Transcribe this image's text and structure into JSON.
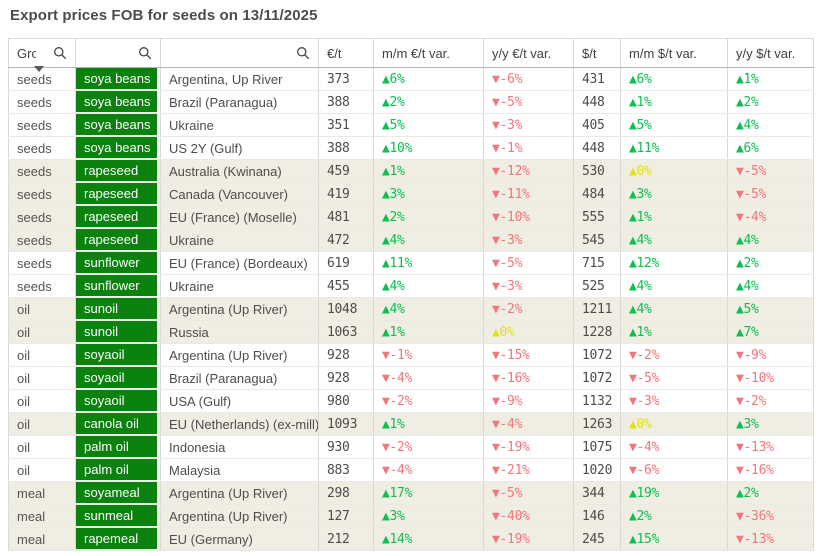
{
  "title": "Export prices FOB for seeds on 13/11/2025",
  "colors": {
    "product_cell_green": "#0a820d",
    "positive_green": "#0ac150",
    "negative_red": "#f2767b",
    "zero_yellow": "#dfe414",
    "shaded_row_beige": "#f0ede3"
  },
  "table": {
    "headers": {
      "group": "Gro",
      "eur_per_t": "€/t",
      "mm_eur_var": "m/m €/t var.",
      "yy_eur_var": "y/y €/t var.",
      "usd_per_t": "$/t",
      "mm_usd_var": "m/m $/t var.",
      "yy_usd_var": "y/y $/t var."
    },
    "rows": [
      {
        "group": "seeds",
        "product": "soya beans",
        "origin": "Argentina, Up River",
        "eur_per_t": 373,
        "mm_eur_var": "▲6%",
        "yy_eur_var": "▼-6%",
        "usd_per_t": 431,
        "mm_usd_var": "▲6%",
        "yy_usd_var": "▲1%",
        "shaded": false
      },
      {
        "group": "seeds",
        "product": "soya beans",
        "origin": "Brazil (Paranagua)",
        "eur_per_t": 388,
        "mm_eur_var": "▲2%",
        "yy_eur_var": "▼-5%",
        "usd_per_t": 448,
        "mm_usd_var": "▲1%",
        "yy_usd_var": "▲2%",
        "shaded": false
      },
      {
        "group": "seeds",
        "product": "soya beans",
        "origin": "Ukraine",
        "eur_per_t": 351,
        "mm_eur_var": "▲5%",
        "yy_eur_var": "▼-3%",
        "usd_per_t": 405,
        "mm_usd_var": "▲5%",
        "yy_usd_var": "▲4%",
        "shaded": false
      },
      {
        "group": "seeds",
        "product": "soya beans",
        "origin": "US 2Y (Gulf)",
        "eur_per_t": 388,
        "mm_eur_var": "▲10%",
        "yy_eur_var": "▼-1%",
        "usd_per_t": 448,
        "mm_usd_var": "▲11%",
        "yy_usd_var": "▲6%",
        "shaded": false
      },
      {
        "group": "seeds",
        "product": "rapeseed",
        "origin": "Australia (Kwinana)",
        "eur_per_t": 459,
        "mm_eur_var": "▲1%",
        "yy_eur_var": "▼-12%",
        "usd_per_t": 530,
        "mm_usd_var": "▲0%",
        "yy_usd_var": "▼-5%",
        "shaded": true
      },
      {
        "group": "seeds",
        "product": "rapeseed",
        "origin": "Canada (Vancouver)",
        "eur_per_t": 419,
        "mm_eur_var": "▲3%",
        "yy_eur_var": "▼-11%",
        "usd_per_t": 484,
        "mm_usd_var": "▲3%",
        "yy_usd_var": "▼-5%",
        "shaded": true
      },
      {
        "group": "seeds",
        "product": "rapeseed",
        "origin": "EU (France) (Moselle)",
        "eur_per_t": 481,
        "mm_eur_var": "▲2%",
        "yy_eur_var": "▼-10%",
        "usd_per_t": 555,
        "mm_usd_var": "▲1%",
        "yy_usd_var": "▼-4%",
        "shaded": true
      },
      {
        "group": "seeds",
        "product": "rapeseed",
        "origin": "Ukraine",
        "eur_per_t": 472,
        "mm_eur_var": "▲4%",
        "yy_eur_var": "▼-3%",
        "usd_per_t": 545,
        "mm_usd_var": "▲4%",
        "yy_usd_var": "▲4%",
        "shaded": true
      },
      {
        "group": "seeds",
        "product": "sunflower",
        "origin": "EU (France) (Bordeaux)",
        "eur_per_t": 619,
        "mm_eur_var": "▲11%",
        "yy_eur_var": "▼-5%",
        "usd_per_t": 715,
        "mm_usd_var": "▲12%",
        "yy_usd_var": "▲2%",
        "shaded": false
      },
      {
        "group": "seeds",
        "product": "sunflower",
        "origin": "Ukraine",
        "eur_per_t": 455,
        "mm_eur_var": "▲4%",
        "yy_eur_var": "▼-3%",
        "usd_per_t": 525,
        "mm_usd_var": "▲4%",
        "yy_usd_var": "▲4%",
        "shaded": false
      },
      {
        "group": "oil",
        "product": "sunoil",
        "origin": "Argentina (Up River)",
        "eur_per_t": 1048,
        "mm_eur_var": "▲4%",
        "yy_eur_var": "▼-2%",
        "usd_per_t": 1211,
        "mm_usd_var": "▲4%",
        "yy_usd_var": "▲5%",
        "shaded": true
      },
      {
        "group": "oil",
        "product": "sunoil",
        "origin": "Russia",
        "eur_per_t": 1063,
        "mm_eur_var": "▲1%",
        "yy_eur_var": "▲0%",
        "usd_per_t": 1228,
        "mm_usd_var": "▲1%",
        "yy_usd_var": "▲7%",
        "shaded": true
      },
      {
        "group": "oil",
        "product": "soyaoil",
        "origin": "Argentina (Up River)",
        "eur_per_t": 928,
        "mm_eur_var": "▼-1%",
        "yy_eur_var": "▼-15%",
        "usd_per_t": 1072,
        "mm_usd_var": "▼-2%",
        "yy_usd_var": "▼-9%",
        "shaded": false
      },
      {
        "group": "oil",
        "product": "soyaoil",
        "origin": "Brazil (Paranagua)",
        "eur_per_t": 928,
        "mm_eur_var": "▼-4%",
        "yy_eur_var": "▼-16%",
        "usd_per_t": 1072,
        "mm_usd_var": "▼-5%",
        "yy_usd_var": "▼-10%",
        "shaded": false
      },
      {
        "group": "oil",
        "product": "soyaoil",
        "origin": "USA (Gulf)",
        "eur_per_t": 980,
        "mm_eur_var": "▼-2%",
        "yy_eur_var": "▼-9%",
        "usd_per_t": 1132,
        "mm_usd_var": "▼-3%",
        "yy_usd_var": "▼-2%",
        "shaded": false
      },
      {
        "group": "oil",
        "product": "canola oil",
        "origin": "EU (Netherlands) (ex-mill)",
        "eur_per_t": 1093,
        "mm_eur_var": "▲1%",
        "yy_eur_var": "▼-4%",
        "usd_per_t": 1263,
        "mm_usd_var": "▲0%",
        "yy_usd_var": "▲3%",
        "shaded": true
      },
      {
        "group": "oil",
        "product": "palm oil",
        "origin": "Indonesia",
        "eur_per_t": 930,
        "mm_eur_var": "▼-2%",
        "yy_eur_var": "▼-19%",
        "usd_per_t": 1075,
        "mm_usd_var": "▼-4%",
        "yy_usd_var": "▼-13%",
        "shaded": false
      },
      {
        "group": "oil",
        "product": "palm oil",
        "origin": "Malaysia",
        "eur_per_t": 883,
        "mm_eur_var": "▼-4%",
        "yy_eur_var": "▼-21%",
        "usd_per_t": 1020,
        "mm_usd_var": "▼-6%",
        "yy_usd_var": "▼-16%",
        "shaded": false
      },
      {
        "group": "meal",
        "product": "soyameal",
        "origin": "Argentina (Up River)",
        "eur_per_t": 298,
        "mm_eur_var": "▲17%",
        "yy_eur_var": "▼-5%",
        "usd_per_t": 344,
        "mm_usd_var": "▲19%",
        "yy_usd_var": "▲2%",
        "shaded": true
      },
      {
        "group": "meal",
        "product": "sunmeal",
        "origin": "Argentina (Up River)",
        "eur_per_t": 127,
        "mm_eur_var": "▲3%",
        "yy_eur_var": "▼-40%",
        "usd_per_t": 146,
        "mm_usd_var": "▲2%",
        "yy_usd_var": "▼-36%",
        "shaded": true
      },
      {
        "group": "meal",
        "product": "rapemeal",
        "origin": "EU (Germany)",
        "eur_per_t": 212,
        "mm_eur_var": "▲14%",
        "yy_eur_var": "▼-19%",
        "usd_per_t": 245,
        "mm_usd_var": "▲15%",
        "yy_usd_var": "▼-13%",
        "shaded": true
      }
    ]
  }
}
